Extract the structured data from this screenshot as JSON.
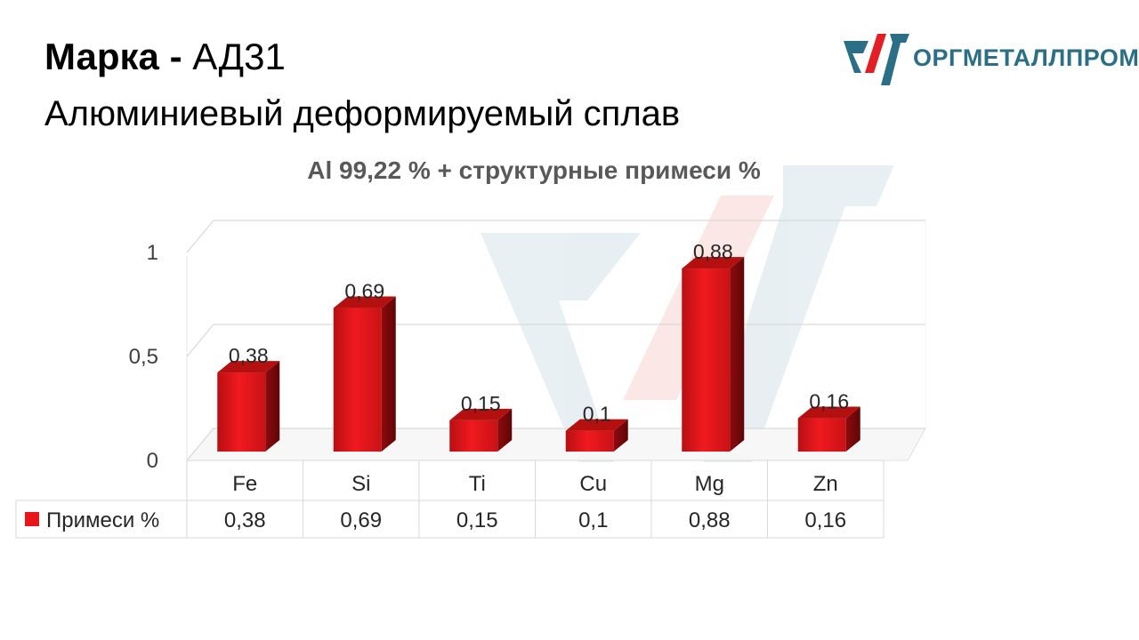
{
  "header": {
    "grade_label": "Марка",
    "grade_separator": "-",
    "grade_value": "АД31",
    "subtitle": "Алюминиевый деформируемый сплав"
  },
  "logo": {
    "text": "ОРГМЕТАЛЛПРОМ",
    "colors": {
      "red": "#e31e24",
      "teal": "#2b6f86"
    }
  },
  "chart_data": {
    "type": "bar",
    "title": "Al 99,22 % + структурные примеси %",
    "categories": [
      "Fe",
      "Si",
      "Ti",
      "Cu",
      "Mg",
      "Zn"
    ],
    "series": [
      {
        "name": "Примеси %",
        "values": [
          0.38,
          0.69,
          0.15,
          0.1,
          0.88,
          0.16
        ],
        "color": "#e8151a"
      }
    ],
    "data_labels": [
      "0,38",
      "0,69",
      "0,15",
      "0,1",
      "0,88",
      "0,16"
    ],
    "y_ticks": [
      {
        "value": 0,
        "label": "0"
      },
      {
        "value": 0.5,
        "label": "0,5"
      },
      {
        "value": 1,
        "label": "1"
      }
    ],
    "ylim": [
      0,
      1
    ],
    "grid": true,
    "style": "3d-column",
    "data_table": true,
    "legend": "data-table"
  }
}
